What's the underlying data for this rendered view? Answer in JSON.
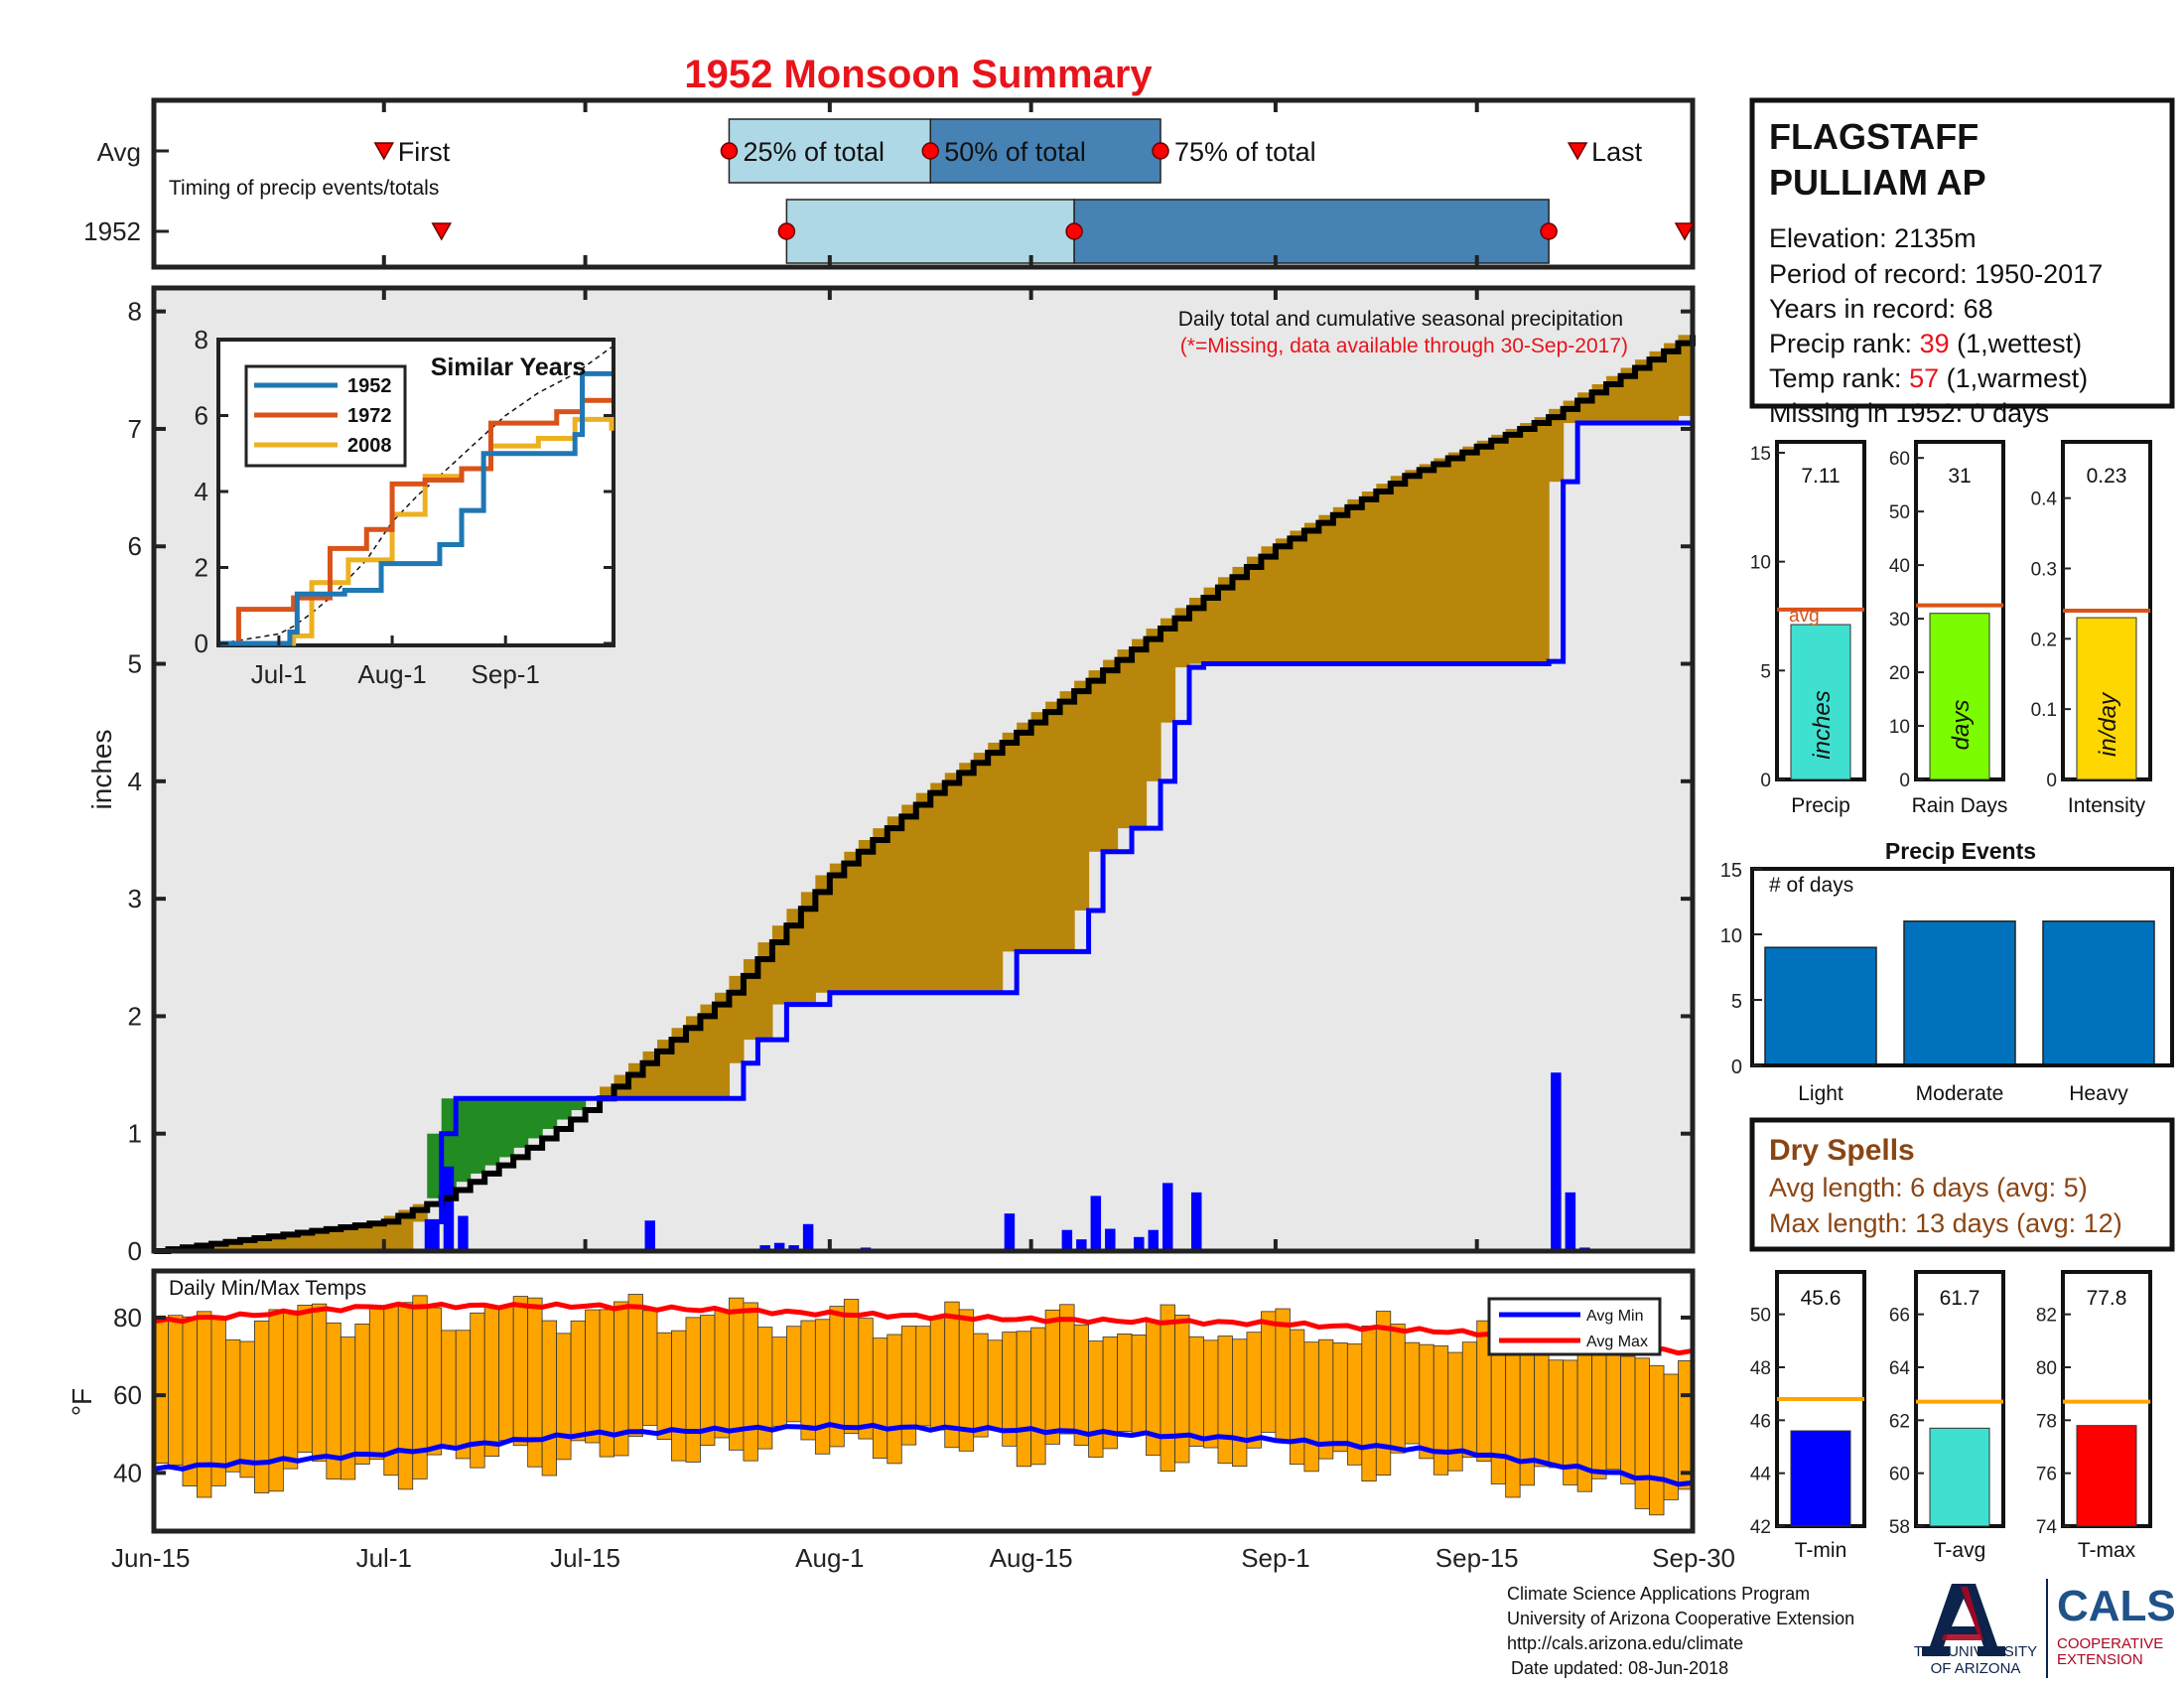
{
  "title": "1952 Monsoon Summary",
  "station": {
    "name_line1": "FLAGSTAFF",
    "name_line2": "PULLIAM AP",
    "elevation_label": "Elevation: 2135m",
    "period_label": "Period of record: 1950-2017",
    "years_label": "Years in record: 68",
    "precip_rank_prefix": "Precip rank: ",
    "precip_rank_value": "39",
    "precip_rank_suffix": " (1,wettest)",
    "temp_rank_prefix": "Temp rank: ",
    "temp_rank_value": "57",
    "temp_rank_suffix": " (1,warmest)",
    "missing_label": "Missing in 1952: 0 days",
    "rank_color": "#e8141b"
  },
  "timing": {
    "row_labels": [
      "Avg",
      "1952"
    ],
    "subtitle": "Timing of precip events/totals",
    "first_label": "First",
    "last_label": "Last",
    "q25_label": "25% of total",
    "q50_label": "50% of total",
    "q75_label": "75% of total",
    "avg": {
      "first": "Jul-1",
      "q25": "Jul-25",
      "q50": "Aug-8",
      "q75": "Aug-24",
      "last": "Sep-22"
    },
    "year": {
      "first": "Jul-5",
      "q25": "Jul-29",
      "q50": "Aug-18",
      "q75": "Sep-20",
      "last": "Sep-30"
    },
    "light_color": "#aed8e6",
    "dark_color": "#4682b4"
  },
  "main_chart": {
    "note": "Daily total and cumulative seasonal precipitation",
    "missing_note": "(*=Missing, data available through 30-Sep-2017)",
    "ylabel": "inches",
    "yticks": [
      "0",
      "1",
      "2",
      "3",
      "4",
      "5",
      "6",
      "7",
      "8"
    ],
    "ylim": [
      0,
      8.2
    ],
    "xticks": [
      "Jun-15",
      "Jul-1",
      "Jul-15",
      "Aug-1",
      "Aug-15",
      "Sep-1",
      "Sep-15",
      "Sep-30"
    ],
    "colors": {
      "above_avg": "#228b22",
      "below_avg": "#b8860b",
      "background": "#e8e8e8",
      "cumulative": "#0000ff",
      "daily": "#0000ff",
      "average": "#000000"
    }
  },
  "chart_data": [
    {
      "type": "line",
      "title": "Daily total and cumulative seasonal precipitation",
      "ylabel": "inches",
      "ylim": [
        0,
        8.2
      ],
      "x_range": [
        "Jun-15",
        "Sep-30"
      ],
      "series": [
        {
          "name": "average cumulative",
          "x": [
            "Jun-15",
            "Jul-1",
            "Jul-5",
            "Jul-10",
            "Jul-15",
            "Jul-20",
            "Jul-25",
            "Aug-1",
            "Aug-8",
            "Aug-15",
            "Aug-24",
            "Sep-1",
            "Sep-10",
            "Sep-20",
            "Sep-30"
          ],
          "values": [
            0,
            0.25,
            0.45,
            0.8,
            1.2,
            1.7,
            2.2,
            3.2,
            3.9,
            4.5,
            5.3,
            6.0,
            6.6,
            7.1,
            7.8
          ]
        },
        {
          "name": "1952 cumulative",
          "x": [
            "Jun-15",
            "Jul-4",
            "Jul-5",
            "Jul-6",
            "Jul-19",
            "Jul-26",
            "Jul-27",
            "Jul-29",
            "Aug-1",
            "Aug-5",
            "Aug-13",
            "Aug-14",
            "Aug-19",
            "Aug-20",
            "Aug-22",
            "Aug-24",
            "Aug-25",
            "Aug-26",
            "Aug-27",
            "Aug-28",
            "Sep-20",
            "Sep-21",
            "Sep-22",
            "Sep-30"
          ],
          "values": [
            0,
            0.25,
            1.0,
            1.3,
            1.3,
            1.6,
            1.8,
            2.1,
            2.2,
            2.2,
            2.2,
            2.55,
            2.9,
            3.4,
            3.6,
            4.0,
            4.5,
            4.97,
            5.0,
            5.0,
            5.02,
            6.55,
            7.05,
            7.11
          ]
        },
        {
          "name": "daily precip",
          "x": [
            "Jul-4",
            "Jul-5",
            "Jul-6",
            "Jul-19",
            "Jul-27",
            "Jul-28",
            "Jul-29",
            "Jul-30",
            "Aug-3",
            "Aug-8",
            "Aug-13",
            "Aug-17",
            "Aug-18",
            "Aug-19",
            "Aug-20",
            "Aug-22",
            "Aug-23",
            "Aug-24",
            "Aug-26",
            "Aug-27",
            "Sep-20",
            "Sep-21",
            "Sep-22"
          ],
          "values": [
            0.25,
            0.72,
            0.3,
            0.26,
            0.05,
            0.07,
            0.05,
            0.23,
            0.03,
            0.02,
            0.32,
            0.18,
            0.1,
            0.47,
            0.19,
            0.12,
            0.18,
            0.58,
            0.5,
            0.02,
            1.52,
            0.5,
            0.03
          ]
        }
      ]
    },
    {
      "type": "line",
      "title": "Similar Years",
      "ylim": [
        0,
        8
      ],
      "yticks": [
        "0",
        "2",
        "4",
        "6",
        "8"
      ],
      "xticks": [
        "Jul-1",
        "Aug-1",
        "Sep-1"
      ],
      "series": [
        {
          "name": "1952",
          "color": "#1f77b4",
          "x": [
            "Jun-15",
            "Jul-4",
            "Jul-6",
            "Jul-19",
            "Jul-29",
            "Aug-14",
            "Aug-20",
            "Aug-26",
            "Sep-20",
            "Sep-22",
            "Sep-30"
          ],
          "values": [
            0,
            0.3,
            1.3,
            1.4,
            2.1,
            2.6,
            3.5,
            5.0,
            5.5,
            7.1,
            7.1
          ]
        },
        {
          "name": "1972",
          "color": "#d95319",
          "x": [
            "Jun-15",
            "Jun-20",
            "Jul-5",
            "Jul-15",
            "Jul-25",
            "Aug-1",
            "Aug-10",
            "Aug-20",
            "Aug-28",
            "Sep-15",
            "Sep-22",
            "Sep-30"
          ],
          "values": [
            0,
            0.9,
            1.2,
            2.5,
            3.0,
            4.2,
            4.3,
            4.6,
            5.8,
            6.1,
            6.4,
            6.4
          ]
        },
        {
          "name": "2008",
          "color": "#edb120",
          "x": [
            "Jun-15",
            "Jul-5",
            "Jul-10",
            "Jul-20",
            "Aug-1",
            "Aug-10",
            "Aug-20",
            "Aug-28",
            "Sep-10",
            "Sep-20",
            "Sep-30"
          ],
          "values": [
            0,
            0.2,
            1.6,
            2.2,
            3.4,
            4.4,
            4.6,
            5.2,
            5.4,
            5.9,
            5.6
          ]
        }
      ],
      "legend_position": "top-left"
    },
    {
      "type": "bar",
      "title": "Daily Min/Max Temps",
      "ylabel": "°F",
      "ylim": [
        25,
        92
      ],
      "yticks": [
        "40",
        "60",
        "80"
      ],
      "series": [
        {
          "name": "Avg Min",
          "color": "#0000ff",
          "x": [
            "Jun-15",
            "Jul-1",
            "Jul-15",
            "Aug-1",
            "Aug-15",
            "Sep-1",
            "Sep-15",
            "Sep-30"
          ],
          "values": [
            41,
            45,
            50,
            52,
            51,
            48.5,
            45,
            37
          ]
        },
        {
          "name": "Avg Max",
          "color": "#ff0000",
          "x": [
            "Jun-15",
            "Jul-1",
            "Jul-15",
            "Aug-1",
            "Aug-15",
            "Sep-1",
            "Sep-15",
            "Sep-30"
          ],
          "values": [
            79,
            83,
            83,
            81,
            79.5,
            78.5,
            76,
            71
          ]
        }
      ],
      "legend_position": "top-right"
    },
    {
      "type": "bar",
      "title": "Precip",
      "categories": [
        "inches"
      ],
      "values": [
        7.11
      ],
      "avg": 7.8,
      "ylim": [
        0,
        15.5
      ],
      "yticks": [
        "0",
        "5",
        "10",
        "15"
      ]
    },
    {
      "type": "bar",
      "title": "Rain Days",
      "categories": [
        "days"
      ],
      "values": [
        31
      ],
      "avg": 32.5,
      "ylim": [
        0,
        63
      ],
      "yticks": [
        "0",
        "10",
        "20",
        "30",
        "40",
        "50",
        "60"
      ]
    },
    {
      "type": "bar",
      "title": "Intensity",
      "categories": [
        "in/day"
      ],
      "values": [
        0.23
      ],
      "avg": 0.24,
      "ylim": [
        0,
        0.48
      ],
      "yticks": [
        "0",
        "0.1",
        "0.2",
        "0.3",
        "0.4"
      ]
    },
    {
      "type": "bar",
      "title": "Precip Events",
      "ylabel": "# of days",
      "categories": [
        "Light",
        "Moderate",
        "Heavy"
      ],
      "values": [
        9,
        11,
        11
      ],
      "ylim": [
        0,
        15
      ],
      "yticks": [
        "0",
        "5",
        "10",
        "15"
      ]
    },
    {
      "type": "bar",
      "title": "T-min",
      "categories": [
        "T-min"
      ],
      "values": [
        45.6
      ],
      "avg": 46.8,
      "ylim": [
        42,
        51.6
      ],
      "yticks": [
        "42",
        "44",
        "46",
        "48",
        "50"
      ]
    },
    {
      "type": "bar",
      "title": "T-avg",
      "categories": [
        "T-avg"
      ],
      "values": [
        61.7
      ],
      "avg": 62.7,
      "ylim": [
        58,
        67.6
      ],
      "yticks": [
        "58",
        "60",
        "62",
        "64",
        "66"
      ]
    },
    {
      "type": "bar",
      "title": "T-max",
      "categories": [
        "T-max"
      ],
      "values": [
        77.8
      ],
      "avg": 78.7,
      "ylim": [
        74,
        83.6
      ],
      "yticks": [
        "74",
        "76",
        "78",
        "80",
        "82"
      ]
    }
  ],
  "similar_years": {
    "title": "Similar Years",
    "legend": [
      "1952",
      "1972",
      "2008"
    ]
  },
  "temps": {
    "title": "Daily Min/Max Temps",
    "ylabel": "°F",
    "legend": [
      "Avg Min",
      "Avg Max"
    ],
    "bar_color": "#ffa500"
  },
  "small_bars": [
    {
      "label": "Precip",
      "value_label": "7.11",
      "unit": "inches",
      "color": "#40e0d0",
      "avg_label": "avg"
    },
    {
      "label": "Rain Days",
      "value_label": "31",
      "unit": "days",
      "color": "#7cfc00"
    },
    {
      "label": "Intensity",
      "value_label": "0.23",
      "unit": "in/day",
      "color": "#ffd700"
    }
  ],
  "events": {
    "title": "Precip Events",
    "ylabel": "# of days",
    "categories": [
      "Light",
      "Moderate",
      "Heavy"
    ],
    "color": "#0072bd"
  },
  "dry_spells": {
    "title": "Dry Spells",
    "avg_length": "Avg length: 6 days (avg: 5)",
    "max_length": "Max length: 13 days (avg: 12)",
    "color": "#8b4513"
  },
  "temp_bars": [
    {
      "label": "T-min",
      "value_label": "45.6",
      "color": "#0000ff"
    },
    {
      "label": "T-avg",
      "value_label": "61.7",
      "color": "#40e0d0"
    },
    {
      "label": "T-max",
      "value_label": "77.8",
      "color": "#ff0000"
    }
  ],
  "footer": {
    "line1": "Climate Science Applications Program",
    "line2": "University of Arizona Cooperative Extension",
    "line3": "http://cals.arizona.edu/climate",
    "line4": "Date updated: 08-Jun-2018"
  },
  "logos": {
    "ua_line1": "THE UNIVERSITY",
    "ua_line2": "OF ARIZONA",
    "cals_title": "CALS",
    "cals_line1": "COOPERATIVE",
    "cals_line2": "EXTENSION"
  }
}
